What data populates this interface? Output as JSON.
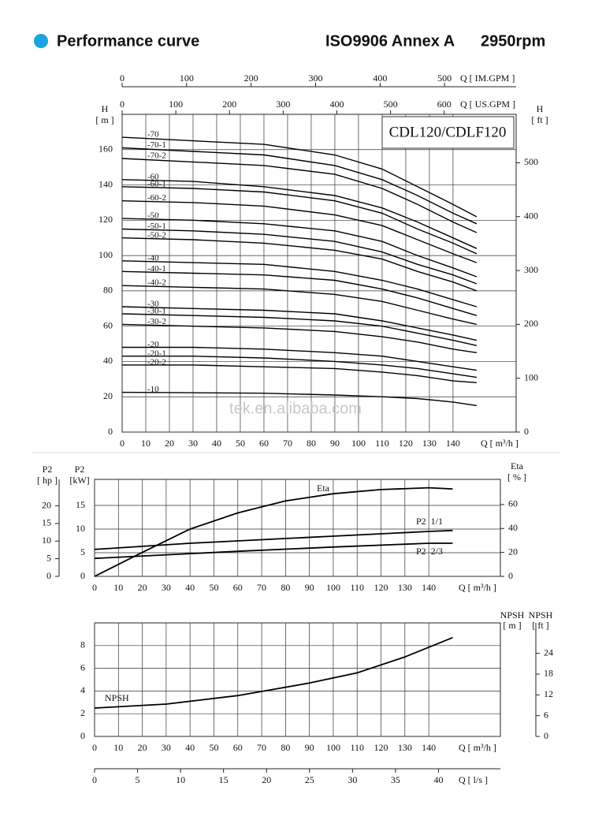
{
  "header": {
    "title": "Performance curve",
    "standard": "ISO9906 Annex A",
    "speed": "2950rpm"
  },
  "chart_data": [
    {
      "type": "line",
      "title": "CDL120/CDLF120",
      "watermark": "tek.en.alibaba.com",
      "color": "#000000",
      "grid": true,
      "x_label": "Q [ m³/h ]",
      "y_label": [
        "H",
        "[ m ]"
      ],
      "y2_label": [
        "H",
        "[ ft ]"
      ],
      "xlim": [
        0,
        166.7
      ],
      "xticks": [
        0,
        10,
        20,
        30,
        40,
        50,
        60,
        70,
        80,
        90,
        100,
        110,
        120,
        130,
        140
      ],
      "ylim": [
        0,
        180
      ],
      "yticks": [
        0,
        20,
        40,
        60,
        80,
        100,
        120,
        140,
        160
      ],
      "y2lim": [
        0,
        590
      ],
      "y2ticks": [
        0,
        100,
        200,
        300,
        400,
        500
      ],
      "us_gpm_axis": {
        "label": "Q [ US.GPM ]",
        "lim": [
          0,
          734
        ],
        "ticks": [
          0,
          100,
          200,
          300,
          400,
          500,
          600
        ]
      },
      "im_gpm_axis": {
        "label": "Q [ IM.GPM ]",
        "lim": [
          0,
          611
        ],
        "ticks": [
          0,
          100,
          200,
          300,
          400,
          500
        ]
      },
      "x": [
        0,
        30,
        60,
        90,
        110,
        125,
        140,
        150
      ],
      "series": [
        {
          "name": "-70",
          "values": [
            167,
            165,
            163,
            157,
            149,
            139,
            129,
            122
          ]
        },
        {
          "name": "-70-1",
          "values": [
            161,
            159,
            157,
            151,
            143,
            134,
            124,
            118
          ]
        },
        {
          "name": "-70-2",
          "values": [
            155,
            153,
            151,
            146,
            138,
            129,
            119,
            113
          ]
        },
        {
          "name": "-60",
          "values": [
            143,
            142,
            139,
            134,
            127,
            119,
            110,
            104
          ]
        },
        {
          "name": "-60-1",
          "values": [
            139,
            138,
            136,
            131,
            124,
            115,
            107,
            101
          ]
        },
        {
          "name": "-60-2",
          "values": [
            131,
            130,
            128,
            123,
            117,
            109,
            101,
            96
          ]
        },
        {
          "name": "-50",
          "values": [
            121,
            120,
            118,
            114,
            108,
            100,
            93,
            88
          ]
        },
        {
          "name": "-50-1",
          "values": [
            115,
            114,
            112,
            108,
            102,
            95,
            89,
            84
          ]
        },
        {
          "name": "-50-2",
          "values": [
            110,
            109,
            107,
            103,
            98,
            91,
            85,
            80
          ]
        },
        {
          "name": "-40",
          "values": [
            97,
            96,
            95,
            91,
            86,
            81,
            75,
            71
          ]
        },
        {
          "name": "-40-1",
          "values": [
            91,
            90,
            89,
            86,
            81,
            76,
            70,
            66
          ]
        },
        {
          "name": "-40-2",
          "values": [
            83,
            82,
            81,
            78,
            74,
            69,
            64,
            61
          ]
        },
        {
          "name": "-30",
          "values": [
            71,
            70,
            69,
            67,
            63,
            59,
            55,
            52
          ]
        },
        {
          "name": "-30-1",
          "values": [
            67,
            66,
            65,
            63,
            60,
            56,
            52,
            49
          ]
        },
        {
          "name": "-30-2",
          "values": [
            61,
            60,
            59,
            57,
            54,
            51,
            47,
            45
          ]
        },
        {
          "name": "-20",
          "values": [
            48,
            48,
            47,
            45,
            43,
            40,
            37,
            35
          ]
        },
        {
          "name": "-20-1",
          "values": [
            43,
            43,
            42,
            40,
            38,
            36,
            33,
            31
          ]
        },
        {
          "name": "-20-2",
          "values": [
            38,
            38,
            37,
            36,
            34,
            32,
            29,
            28
          ]
        },
        {
          "name": "-10",
          "values": [
            22.5,
            22.3,
            22,
            21,
            20,
            19,
            17,
            15
          ]
        }
      ]
    },
    {
      "type": "line",
      "color": "#000000",
      "grid": true,
      "x_label": "Q [ m³/h ]",
      "y_label": [
        "P2",
        "[kW]"
      ],
      "y2_label": [
        "Eta",
        "[ % ]"
      ],
      "xlim": [
        0,
        170
      ],
      "xticks": [
        0,
        10,
        20,
        30,
        40,
        50,
        60,
        70,
        80,
        90,
        100,
        110,
        120,
        130,
        140
      ],
      "ylim": [
        0,
        20.5
      ],
      "yticks": [
        0,
        5,
        10,
        15
      ],
      "y2lim": [
        0,
        81
      ],
      "y2ticks": [
        0,
        20,
        40,
        60
      ],
      "hp_axis": {
        "label": [
          "P2",
          "[ hp ]"
        ],
        "lim": [
          0,
          27.5
        ],
        "ticks": [
          0,
          5,
          10,
          15,
          20
        ]
      },
      "series": [
        {
          "name": "Eta",
          "axis": "y2",
          "x": [
            0,
            20,
            40,
            60,
            80,
            100,
            120,
            140,
            150
          ],
          "values": [
            0,
            20,
            39.5,
            53,
            63,
            69,
            72.5,
            74,
            73
          ]
        },
        {
          "name": "P2  1/1",
          "x": [
            0,
            40,
            60,
            100,
            140,
            150
          ],
          "values": [
            5.7,
            7,
            7.5,
            8.5,
            9.5,
            9.7
          ]
        },
        {
          "name": "P2  2/3",
          "x": [
            0,
            60,
            100,
            140,
            150
          ],
          "values": [
            3.8,
            5.3,
            6.2,
            7,
            7
          ]
        }
      ]
    },
    {
      "type": "line",
      "color": "#000000",
      "grid": true,
      "x_label": "Q [ m³/h ]",
      "y_label": [
        "NPSH",
        "[ m ]"
      ],
      "xlim": [
        0,
        170
      ],
      "xticks": [
        0,
        10,
        20,
        30,
        40,
        50,
        60,
        70,
        80,
        90,
        100,
        110,
        120,
        130,
        140
      ],
      "ylim": [
        0,
        10
      ],
      "yticks": [
        0,
        2,
        4,
        6,
        8
      ],
      "ft_axis": {
        "label": [
          "NPSH",
          "[ ft ]"
        ],
        "lim": [
          0,
          32.8
        ],
        "ticks": [
          0,
          6,
          12,
          18,
          24
        ]
      },
      "ls_axis": {
        "label": "Q [ l/s ]",
        "lim": [
          0,
          47.2
        ],
        "ticks": [
          0,
          5,
          10,
          15,
          20,
          25,
          30,
          35,
          40
        ]
      },
      "series": [
        {
          "name": "NPSH",
          "x": [
            0,
            30,
            60,
            90,
            110,
            130,
            150
          ],
          "values": [
            2.5,
            2.85,
            3.6,
            4.7,
            5.6,
            7,
            8.7
          ]
        }
      ]
    }
  ]
}
